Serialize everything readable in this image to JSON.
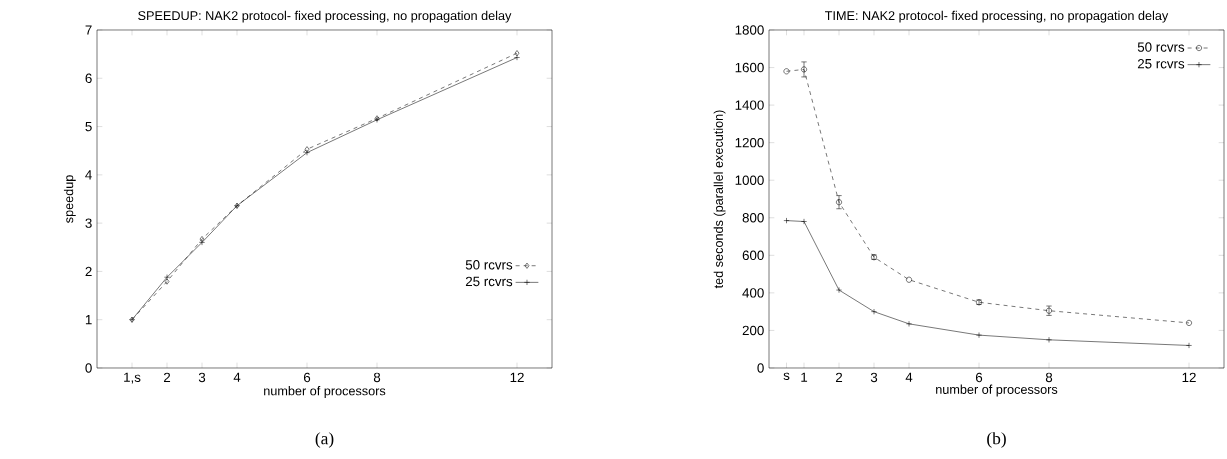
{
  "chart_data": [
    {
      "type": "line",
      "title": "SPEEDUP: NAK2 protocol- fixed processing, no propagation delay",
      "xlabel": "number of processors",
      "ylabel": "speedup",
      "x": [
        1,
        2,
        3,
        4,
        6,
        8,
        12
      ],
      "xlim": [
        0,
        13
      ],
      "xticks": [
        {
          "value": 1,
          "label": "1,s"
        },
        2,
        3,
        4,
        6,
        8,
        12
      ],
      "ylim": [
        0,
        7
      ],
      "yticks": [
        0,
        1,
        2,
        3,
        4,
        5,
        6,
        7
      ],
      "legend": "bottom right",
      "grid": false,
      "series": [
        {
          "name": "50 rcvrs",
          "color": "#000000",
          "marker": "diamond",
          "line_style": "dashed",
          "values": [
            1.0,
            1.79,
            2.67,
            3.36,
            4.53,
            5.17,
            6.52
          ]
        },
        {
          "name": "25 rcvrs",
          "color": "#000000",
          "marker": "cross",
          "line_style": "solid",
          "values": [
            1.0,
            1.88,
            2.6,
            3.36,
            4.46,
            5.14,
            6.43
          ]
        }
      ],
      "annotations": [
        "(a)"
      ]
    },
    {
      "type": "line",
      "title": "TIME: NAK2 protocol- fixed processing, no propagation delay",
      "xlabel": "number of processors",
      "ylabel": "ted seconds (parallel execution)",
      "x": [
        0.5,
        1,
        2,
        3,
        4,
        6,
        8,
        12
      ],
      "xlim": [
        0,
        13
      ],
      "xticks": [
        {
          "value": 0.5,
          "label": "s"
        },
        1,
        2,
        3,
        4,
        6,
        8,
        12
      ],
      "ylim": [
        0,
        1800
      ],
      "yticks": [
        0,
        200,
        400,
        600,
        800,
        1000,
        1200,
        1400,
        1600,
        1800
      ],
      "legend": "top right",
      "grid": false,
      "series": [
        {
          "name": "50 rcvrs",
          "color": "#000000",
          "marker": "circle",
          "line_style": "dashed",
          "values": [
            1580,
            1590,
            883,
            590,
            470,
            350,
            305,
            240
          ],
          "errors": [
            null,
            40,
            35,
            12,
            null,
            12,
            25,
            null
          ]
        },
        {
          "name": "25 rcvrs",
          "color": "#000000",
          "marker": "cross",
          "line_style": "solid",
          "values": [
            785,
            780,
            415,
            300,
            235,
            175,
            150,
            120
          ]
        }
      ],
      "annotations": [
        "(b)"
      ]
    }
  ]
}
